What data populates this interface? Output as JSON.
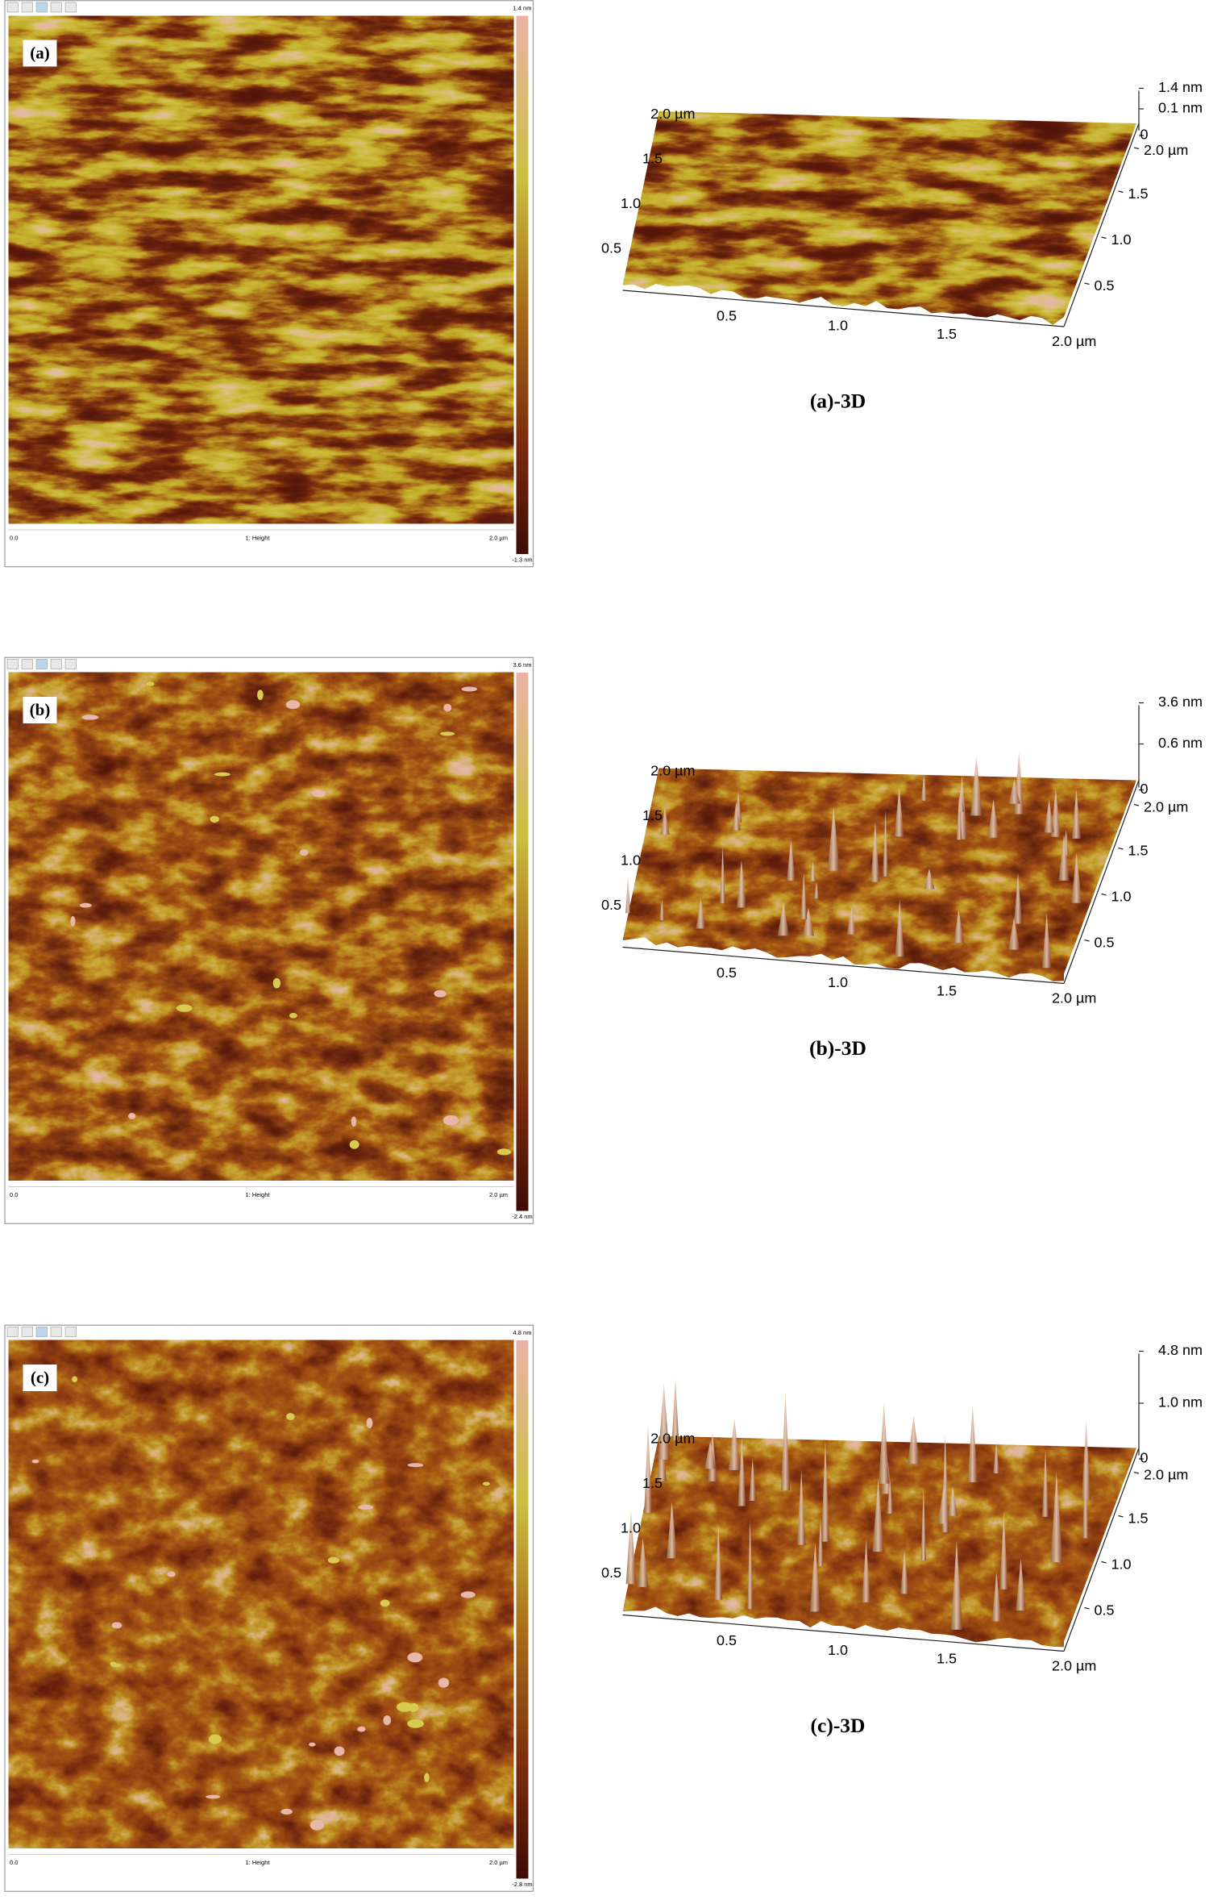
{
  "panels": [
    {
      "label": "(a)",
      "colorbar_max": "1.4 nm",
      "colorbar_min": "-1.3 nm",
      "x_start": "0.0",
      "channel": "1: Height",
      "x_end": "2.0 µm",
      "surface": {
        "z_labels": [
          "1.4 nm",
          "0.1 nm",
          "0"
        ],
        "left_ticks": [
          "2.0 µm",
          "1.5",
          "1.0",
          "0.5"
        ],
        "right_ticks": [
          "2.0 µm",
          "1.5",
          "1.0",
          "0.5"
        ],
        "bottom_ticks": [
          "0.5",
          "1.0",
          "1.5",
          "2.0 µm"
        ],
        "caption": "(a)-3D"
      }
    },
    {
      "label": "(b)",
      "colorbar_max": "3.6 nm",
      "colorbar_min": "-2.4 nm",
      "x_start": "0.0",
      "channel": "1: Height",
      "x_end": "2.0 µm",
      "surface": {
        "z_labels": [
          "3.6 nm",
          "0.6 nm",
          "0"
        ],
        "left_ticks": [
          "2.0 µm",
          "1.5",
          "1.0",
          "0.5"
        ],
        "right_ticks": [
          "2.0 µm",
          "1.5",
          "1.0",
          "0.5"
        ],
        "bottom_ticks": [
          "0.5",
          "1.0",
          "1.5",
          "2.0 µm"
        ],
        "caption": "(b)-3D"
      }
    },
    {
      "label": "(c)",
      "colorbar_max": "4.8 nm",
      "colorbar_min": "-2.8 nm",
      "x_start": "0.0",
      "channel": "1: Height",
      "x_end": "2.0 µm",
      "surface": {
        "z_labels": [
          "4.8 nm",
          "1.0 nm",
          "0"
        ],
        "left_ticks": [
          "2.0 µm",
          "1.5",
          "1.0",
          "0.5"
        ],
        "right_ticks": [
          "2.0 µm",
          "1.5",
          "1.0",
          "0.5"
        ],
        "bottom_ticks": [
          "0.5",
          "1.0",
          "1.5",
          "2.0 µm"
        ],
        "caption": "(c)-3D"
      }
    }
  ]
}
